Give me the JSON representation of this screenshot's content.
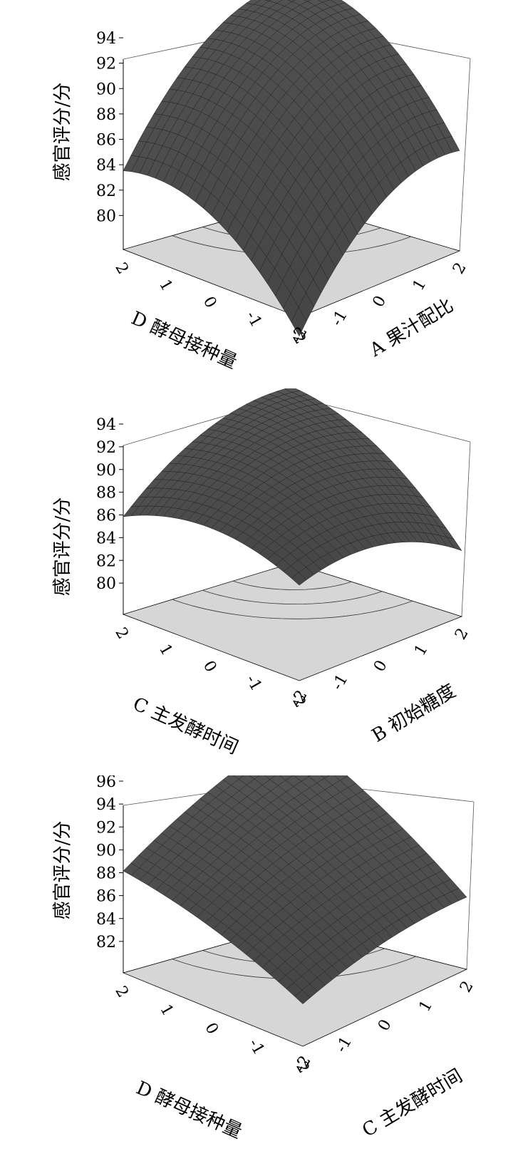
{
  "chart_data": [
    {
      "type": "surface",
      "zlabel": "感官评分/分",
      "z_ticks": [
        "94",
        "92",
        "90",
        "88",
        "86",
        "84",
        "82",
        "80"
      ],
      "zlim": [
        78,
        94
      ],
      "x_axis": {
        "label": "A 果汁配比",
        "ticks": [
          "-2",
          "-1",
          "0",
          "1",
          "2"
        ]
      },
      "y_axis": {
        "label": "D 酵母接种量",
        "ticks": [
          "-2",
          "-1",
          "0",
          "1",
          "2"
        ]
      },
      "surface_corners": {
        "front_z": 76.5,
        "left_z": 84.2,
        "right_z": 85.9,
        "back_z": 95.3
      },
      "surface_curvature": -6,
      "surface_color": "#4a4a4a",
      "contour_color": "#d6d6d6"
    },
    {
      "type": "surface",
      "zlabel": "感官评分/分",
      "z_ticks": [
        "94",
        "92",
        "90",
        "88",
        "86",
        "84",
        "82",
        "80"
      ],
      "zlim": [
        78,
        94
      ],
      "x_axis": {
        "label": "B 初始糖度",
        "ticks": [
          "-2",
          "-1",
          "0",
          "1",
          "2"
        ]
      },
      "y_axis": {
        "label": "C 主发酵时间",
        "ticks": [
          "-2",
          "-1",
          "0",
          "1",
          "2"
        ]
      },
      "surface_corners": {
        "front_z": 86.4,
        "left_z": 86.6,
        "right_z": 83.8,
        "back_z": 93.5
      },
      "surface_curvature": -4,
      "surface_color": "#4a4a4a",
      "contour_color": "#d6d6d6"
    },
    {
      "type": "surface",
      "zlabel": "感官评分/分",
      "z_ticks": [
        "96",
        "94",
        "92",
        "90",
        "88",
        "86",
        "84",
        "82"
      ],
      "zlim": [
        80,
        96
      ],
      "x_axis": {
        "label": "C 主发酵时间",
        "ticks": [
          "-2",
          "-1",
          "0",
          "1",
          "2"
        ]
      },
      "y_axis": {
        "label": "D 酵母接种量",
        "ticks": [
          "-2",
          "-1",
          "0",
          "1",
          "2"
        ]
      },
      "surface_corners": {
        "front_z": 83.7,
        "left_z": 88.9,
        "right_z": 86.3,
        "back_z": 97.0
      },
      "surface_curvature": -1.5,
      "surface_color": "#4a4a4a",
      "contour_color": "#d6d6d6"
    }
  ]
}
